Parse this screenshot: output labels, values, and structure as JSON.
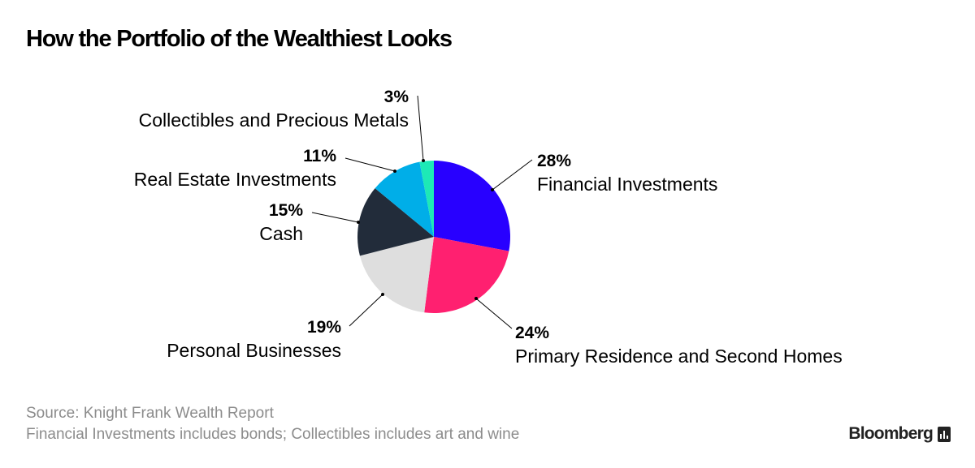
{
  "title": "How the Portfolio of the Wealthiest Looks",
  "footer": {
    "source": "Source: Knight Frank Wealth Report",
    "note": "Financial Investments includes bonds; Collectibles includes art and wine"
  },
  "brand": {
    "name": "Bloomberg",
    "icon": "bar-chart-logo-icon"
  },
  "chart_data": {
    "type": "pie",
    "title": "How the Portfolio of the Wealthiest Looks",
    "start": "12 o'clock, clockwise",
    "slices": [
      {
        "label": "Financial Investments",
        "value": 28,
        "pct_label": "28%",
        "color": "#2800ff"
      },
      {
        "label": "Primary Residence and Second Homes",
        "value": 24,
        "pct_label": "24%",
        "color": "#ff2070"
      },
      {
        "label": "Personal Businesses",
        "value": 19,
        "pct_label": "19%",
        "color": "#dedede"
      },
      {
        "label": "Cash",
        "value": 15,
        "pct_label": "15%",
        "color": "#222c3a"
      },
      {
        "label": "Real Estate Investments",
        "value": 11,
        "pct_label": "11%",
        "color": "#00aee8"
      },
      {
        "label": "Collectibles and Precious Metals",
        "value": 3,
        "pct_label": "3%",
        "color": "#1de9b6"
      }
    ]
  }
}
